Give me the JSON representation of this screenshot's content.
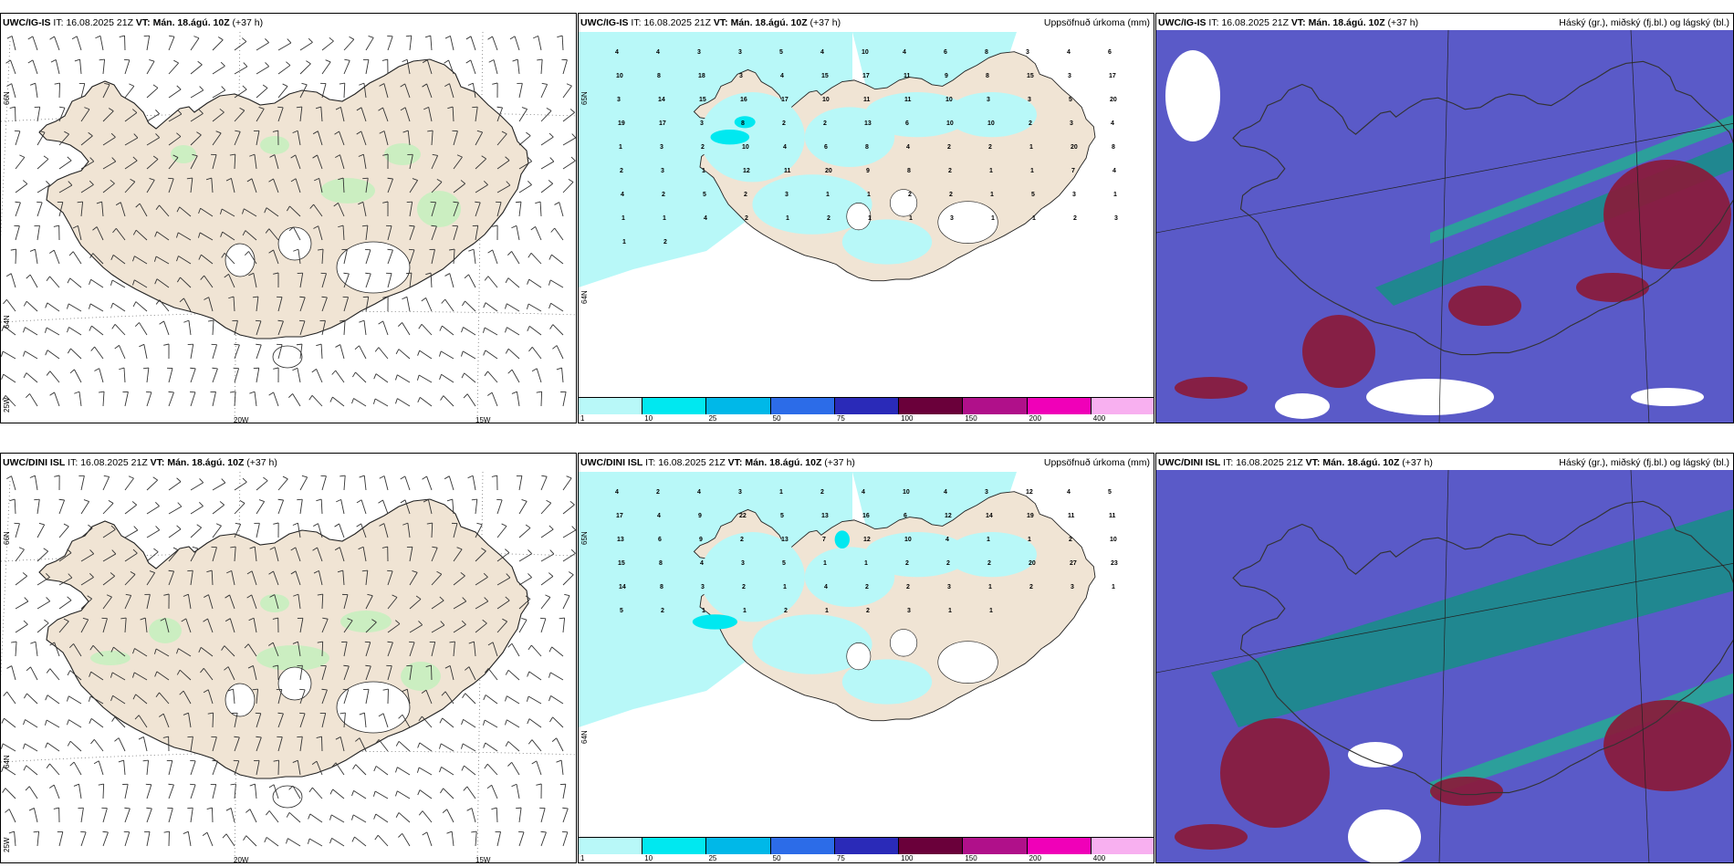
{
  "rows": [
    {
      "model": "UWC/IG-IS",
      "it_label": "IT:",
      "it_value": "16.08.2025 21Z",
      "vt_label": "VT:",
      "vt_value": "Mán. 18.ágú. 10Z",
      "lead": "(+37 h)",
      "precip_numbers": [
        "4",
        "4",
        "3",
        "3",
        "5",
        "4",
        "10",
        "4",
        "6",
        "8",
        "3",
        "4",
        "6",
        "10",
        "8",
        "18",
        "3",
        "4",
        "15",
        "17",
        "11",
        "9",
        "8",
        "15",
        "3",
        "17",
        "3",
        "14",
        "15",
        "16",
        "17",
        "10",
        "11",
        "11",
        "10",
        "3",
        "3",
        "5",
        "20",
        "19",
        "17",
        "3",
        "8",
        "2",
        "2",
        "13",
        "6",
        "10",
        "10",
        "2",
        "3",
        "4",
        "1",
        "3",
        "2",
        "10",
        "4",
        "6",
        "8",
        "4",
        "2",
        "2",
        "1",
        "20",
        "8",
        "2",
        "3",
        "1",
        "12",
        "11",
        "20",
        "9",
        "8",
        "2",
        "1",
        "1",
        "7",
        "4",
        "4",
        "2",
        "5",
        "2",
        "3",
        "1",
        "1",
        "2",
        "2",
        "1",
        "5",
        "3",
        "1",
        "1",
        "1",
        "4",
        "2",
        "1",
        "2",
        "1",
        "1",
        "3",
        "1",
        "1",
        "2",
        "3",
        "1",
        "2"
      ]
    },
    {
      "model": "UWC/DINI ISL",
      "it_label": "IT:",
      "it_value": "16.08.2025 21Z",
      "vt_label": "VT:",
      "vt_value": "Mán. 18.ágú. 10Z",
      "lead": "(+37 h)",
      "precip_numbers": [
        "4",
        "2",
        "4",
        "3",
        "1",
        "2",
        "4",
        "10",
        "4",
        "3",
        "12",
        "4",
        "5",
        "17",
        "4",
        "9",
        "22",
        "5",
        "13",
        "16",
        "6",
        "12",
        "14",
        "19",
        "11",
        "11",
        "13",
        "6",
        "9",
        "2",
        "13",
        "7",
        "12",
        "10",
        "4",
        "1",
        "1",
        "2",
        "10",
        "15",
        "8",
        "4",
        "3",
        "5",
        "1",
        "1",
        "2",
        "2",
        "2",
        "20",
        "27",
        "23",
        "14",
        "8",
        "3",
        "2",
        "1",
        "4",
        "2",
        "2",
        "3",
        "1",
        "2",
        "3",
        "1",
        "5",
        "2",
        "1",
        "1",
        "2",
        "1",
        "2",
        "3",
        "1",
        "1"
      ]
    }
  ],
  "precip_title": "Uppsöfnuð úrkoma (mm)",
  "cloud_title": "Háský (gr.), miðský (fj.bl.) og lágský (bl.)",
  "lon_labels": [
    "20W",
    "15W"
  ],
  "lat_labels": [
    "66N",
    "64N",
    "25W"
  ],
  "lat_labels_mid": [
    "65N",
    "64N"
  ],
  "colorbar": {
    "labels": [
      "1",
      "10",
      "25",
      "50",
      "75",
      "100",
      "150",
      "200",
      "400"
    ],
    "colors": [
      "#b8f8f8",
      "#00e8f0",
      "#00b8e8",
      "#2c6ce8",
      "#2a2ab8",
      "#6a003a",
      "#b0108a",
      "#f000b8",
      "#f8b0f0"
    ]
  },
  "colors": {
    "land": "#f0e4d4",
    "sea": "#ffffff",
    "precip_light": "#b8f8f8",
    "precip_mid": "#00e8f0",
    "cloud_high": "#5a5ac8",
    "cloud_mid": "#1a8c8a",
    "cloud_low": "#8a1a3a"
  }
}
